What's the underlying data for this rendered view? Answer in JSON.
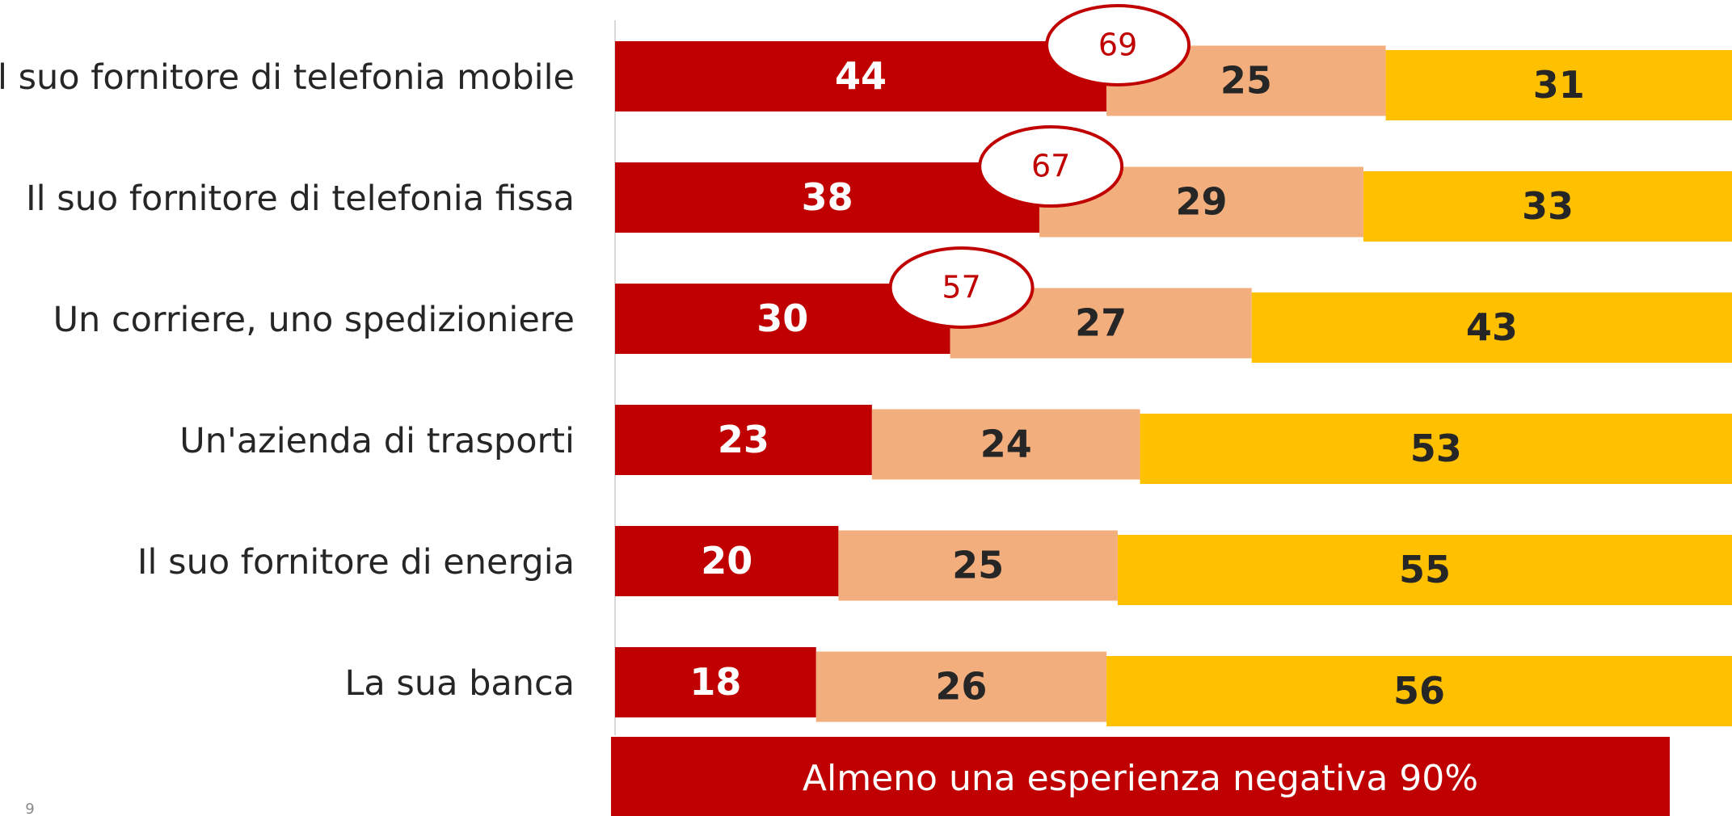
{
  "chart_data": {
    "type": "stacked-bar-horizontal",
    "categories": [
      "Il suo fornitore di telefonia mobile",
      "Il suo fornitore di telefonia fissa",
      "Un corriere, uno spedizioniere",
      "Un'azienda di trasporti",
      "Il suo fornitore di energia",
      "La sua banca"
    ],
    "series": [
      {
        "color": "#c00000",
        "values": [
          44,
          38,
          30,
          23,
          20,
          18
        ]
      },
      {
        "color": "#f2ae7c",
        "values": [
          25,
          29,
          27,
          24,
          25,
          26
        ]
      },
      {
        "color": "#ffc000",
        "values": [
          31,
          33,
          43,
          53,
          55,
          56
        ]
      }
    ],
    "callout_values": [
      69,
      67,
      57,
      null,
      null,
      null
    ],
    "xlim": [
      0,
      100
    ],
    "banner": "Almeno una esperienza negativa 90%",
    "page_number": "9"
  }
}
